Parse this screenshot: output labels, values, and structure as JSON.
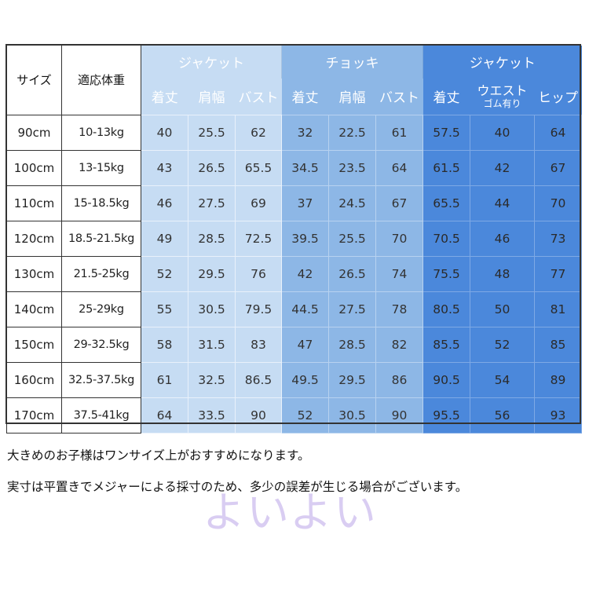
{
  "table": {
    "size_label": "サイズ",
    "weight_label": "適応体重",
    "groups": [
      {
        "label": "ジャケット",
        "columns": [
          "着丈",
          "肩幅",
          "バスト"
        ]
      },
      {
        "label": "チョッキ",
        "columns": [
          "着丈",
          "肩幅",
          "バスト"
        ]
      },
      {
        "label": "ジャケット",
        "columns": [
          "着丈",
          "ウエスト",
          "ヒップ"
        ],
        "waist_sub": "ゴム有り"
      }
    ],
    "rows": [
      {
        "size": "90cm",
        "weight": "10-13kg",
        "values": [
          "40",
          "25.5",
          "62",
          "32",
          "22.5",
          "61",
          "57.5",
          "40",
          "64"
        ]
      },
      {
        "size": "100cm",
        "weight": "13-15kg",
        "values": [
          "43",
          "26.5",
          "65.5",
          "34.5",
          "23.5",
          "64",
          "61.5",
          "42",
          "67"
        ]
      },
      {
        "size": "110cm",
        "weight": "15-18.5kg",
        "values": [
          "46",
          "27.5",
          "69",
          "37",
          "24.5",
          "67",
          "65.5",
          "44",
          "70"
        ]
      },
      {
        "size": "120cm",
        "weight": "18.5-21.5kg",
        "values": [
          "49",
          "28.5",
          "72.5",
          "39.5",
          "25.5",
          "70",
          "70.5",
          "46",
          "73"
        ]
      },
      {
        "size": "130cm",
        "weight": "21.5-25kg",
        "values": [
          "52",
          "29.5",
          "76",
          "42",
          "26.5",
          "74",
          "75.5",
          "48",
          "77"
        ]
      },
      {
        "size": "140cm",
        "weight": "25-29kg",
        "values": [
          "55",
          "30.5",
          "79.5",
          "44.5",
          "27.5",
          "78",
          "80.5",
          "50",
          "81"
        ]
      },
      {
        "size": "150cm",
        "weight": "29-32.5kg",
        "values": [
          "58",
          "31.5",
          "83",
          "47",
          "28.5",
          "82",
          "85.5",
          "52",
          "85"
        ]
      },
      {
        "size": "160cm",
        "weight": "32.5-37.5kg",
        "values": [
          "61",
          "32.5",
          "86.5",
          "49.5",
          "29.5",
          "86",
          "90.5",
          "54",
          "89"
        ]
      },
      {
        "size": "170cm",
        "weight": "37.5-41kg",
        "values": [
          "64",
          "33.5",
          "90",
          "52",
          "30.5",
          "90",
          "95.5",
          "56",
          "93"
        ]
      }
    ]
  },
  "notes": [
    "大きめのお子様はワンサイズ上がおすすめになります。",
    "実寸は平置きでメジャーによる採寸のため、多少の誤差が生じる場合がございます。"
  ],
  "watermark": "よいよい",
  "colors": {
    "group1": "#c6dcf3",
    "group2": "#8db7e6",
    "group3": "#4b88db"
  }
}
